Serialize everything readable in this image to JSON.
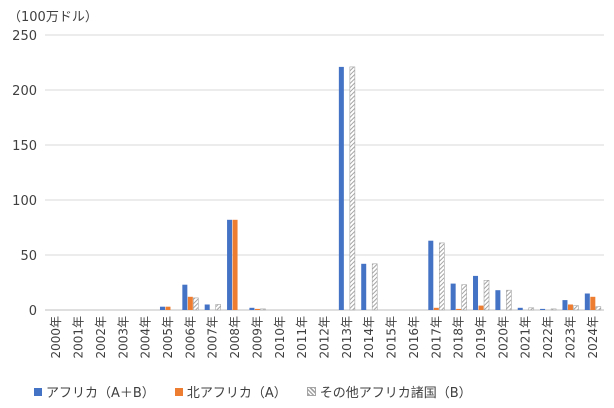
{
  "chart_data": {
    "type": "bar",
    "unit_label": "（100万ドル）",
    "categories": [
      "2000年",
      "2001年",
      "2002年",
      "2003年",
      "2004年",
      "2005年",
      "2006年",
      "2007年",
      "2008年",
      "2009年",
      "2010年",
      "2011年",
      "2012年",
      "2013年",
      "2014年",
      "2015年",
      "2016年",
      "2017年",
      "2018年",
      "2019年",
      "2020年",
      "2021年",
      "2022年",
      "2023年",
      "2024年"
    ],
    "ylim": [
      0,
      250
    ],
    "yticks": [
      0,
      50,
      100,
      150,
      200,
      250
    ],
    "grid": true,
    "legend_position": "bottom",
    "series": [
      {
        "name": "アフリカ（A＋B）",
        "color": "#4472C4",
        "values": [
          0,
          0,
          0,
          0,
          0,
          3,
          23,
          5,
          82,
          2,
          0,
          0,
          0,
          221,
          42,
          0,
          0,
          63,
          24,
          31,
          18,
          2,
          1,
          9,
          15
        ]
      },
      {
        "name": "北アフリカ（A）",
        "color": "#ED7D31",
        "values": [
          0,
          0,
          0,
          0,
          0,
          3,
          12,
          0,
          82,
          1,
          0,
          0,
          0,
          0,
          0,
          0,
          0,
          2,
          1,
          4,
          0,
          0,
          0,
          5,
          12
        ]
      },
      {
        "name": "その他アフリカ諸国（B）",
        "color": "#A5A5A5",
        "pattern": "hatched",
        "values": [
          0,
          0,
          0,
          0,
          0,
          0,
          11,
          5,
          0,
          1,
          0,
          0,
          0,
          221,
          42,
          0,
          0,
          61,
          23,
          27,
          18,
          2,
          1,
          4,
          3
        ]
      }
    ]
  }
}
